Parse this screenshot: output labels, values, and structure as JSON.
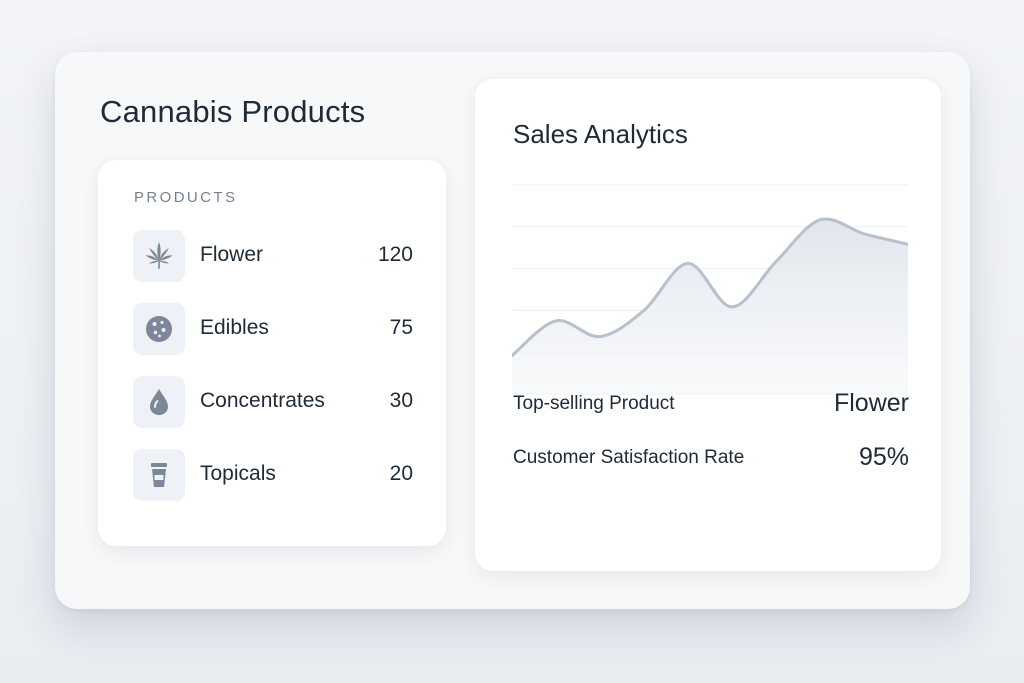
{
  "page": {
    "title": "Cannabis Products"
  },
  "products": {
    "header": "PRODUCTS",
    "items": [
      {
        "name": "Flower",
        "count": "120",
        "icon": "cannabis-leaf-icon"
      },
      {
        "name": "Edibles",
        "count": "75",
        "icon": "cookie-icon"
      },
      {
        "name": "Concentrates",
        "count": "30",
        "icon": "droplet-icon"
      },
      {
        "name": "Topicals",
        "count": "20",
        "icon": "tube-icon"
      }
    ]
  },
  "analytics": {
    "title": "Sales Analytics",
    "stats": [
      {
        "label": "Top-selling Product",
        "value": "Flower"
      },
      {
        "label": "Customer Satisfaction Rate",
        "value": "95%"
      }
    ]
  },
  "chart_data": {
    "type": "area",
    "x": [
      0,
      1,
      2,
      3,
      4,
      5,
      6,
      7,
      8,
      9
    ],
    "values": [
      22,
      42,
      33,
      48,
      75,
      50,
      76,
      100,
      92,
      86
    ],
    "ylim": [
      0,
      120
    ],
    "grid": true,
    "colors": {
      "line": "#b7c0cc",
      "fill": "#e6eaf0",
      "grid": "#eceff3"
    }
  },
  "colors": {
    "text": "#1f2a37",
    "muted": "#76808f",
    "icon": "#7c8797",
    "icon_bg": "#eef1f5"
  }
}
